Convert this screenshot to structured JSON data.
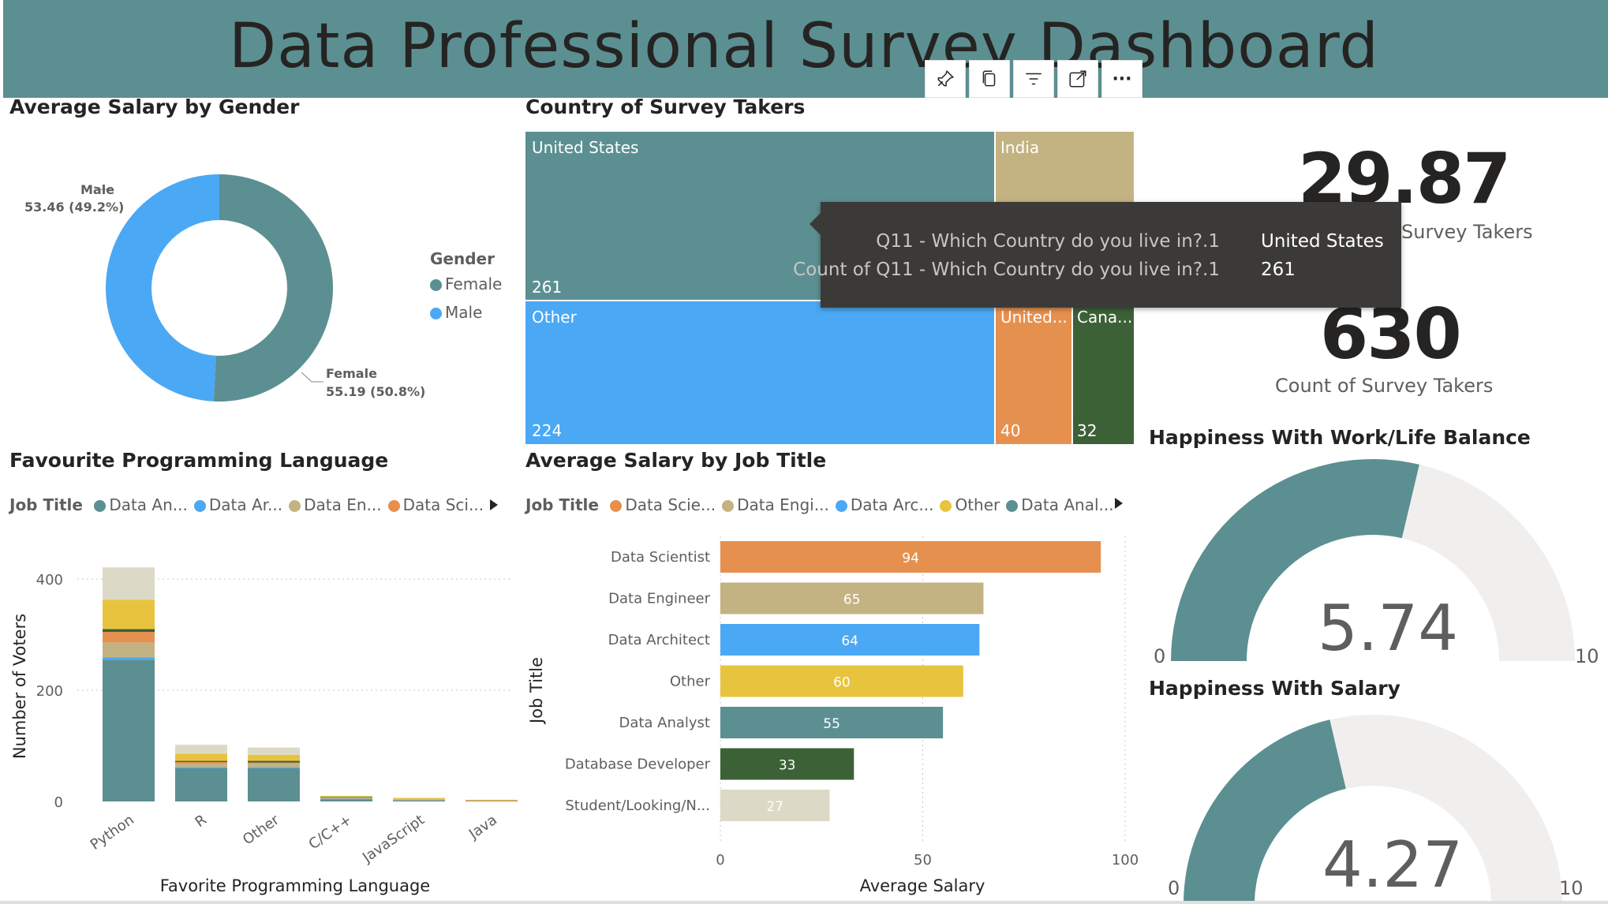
{
  "page": {
    "title": "Data Professional Survey Dashboard"
  },
  "toolbar": {
    "icons": [
      "pin-icon",
      "copy-icon",
      "filter-icon",
      "focus-mode-icon",
      "more-options-icon"
    ],
    "more_label": "···"
  },
  "gender_chart": {
    "title": "Average Salary by Gender",
    "legend_title": "Gender",
    "legend": [
      "Female",
      "Male"
    ],
    "male_label": "Male",
    "male_value": "53.46 (49.2%)",
    "female_label": "Female",
    "female_value": "55.19 (50.8%)",
    "colors": {
      "Female": "#5c8f91",
      "Male": "#4ba8f4"
    }
  },
  "country_chart": {
    "title": "Country of Survey Takers",
    "tiles": [
      {
        "name": "United States",
        "value": "261",
        "color": "#5c8f91"
      },
      {
        "name": "India",
        "value": "",
        "color": "#c4b382"
      },
      {
        "name": "Other",
        "value": "224",
        "color": "#4ba8f4"
      },
      {
        "name": "United...",
        "value": "40",
        "color": "#e6904f"
      },
      {
        "name": "Cana...",
        "value": "32",
        "color": "#3d6137"
      }
    ]
  },
  "tooltip": {
    "row1_key": "Q11 - Which Country do you live in?.1",
    "row1_value": "United States",
    "row2_key": "Count of Q11 - Which Country do you live in?.1",
    "row2_value": "261"
  },
  "cards": {
    "age_value": "29.87",
    "age_label": "Average Age of Survey Takers",
    "count_value": "630",
    "count_label": "Count of Survey Takers"
  },
  "lang_chart": {
    "title": "Favourite Programming Language",
    "legend_title": "Job Title",
    "legend": [
      {
        "label": "Data An...",
        "color": "#5c8f91"
      },
      {
        "label": "Data Ar...",
        "color": "#4ba8f4"
      },
      {
        "label": "Data En...",
        "color": "#c4b382"
      },
      {
        "label": "Data Sci...",
        "color": "#e6904f"
      }
    ],
    "xlabel": "Favorite Programming Language",
    "ylabel": "Number of Voters"
  },
  "job_chart": {
    "title": "Average Salary by Job Title",
    "legend_title": "Job Title",
    "legend": [
      {
        "label": "Data Scie...",
        "color": "#e6904f"
      },
      {
        "label": "Data Engi...",
        "color": "#c4b382"
      },
      {
        "label": "Data Arc...",
        "color": "#4ba8f4"
      },
      {
        "label": "Other",
        "color": "#e8c43e"
      },
      {
        "label": "Data Anal...",
        "color": "#5c8f91"
      }
    ],
    "xlabel": "Average Salary",
    "ylabel": "Job Title"
  },
  "gauges": {
    "worklife_title": "Happiness With Work/Life Balance",
    "worklife_value": "5.74",
    "salary_title": "Happiness With Salary",
    "salary_value": "4.27",
    "min_label": "0",
    "max_label": "10",
    "colors": {
      "fill": "#5c8f91",
      "track": "#f0efee"
    }
  },
  "chart_data": [
    {
      "type": "pie",
      "categories": [
        "Female",
        "Male"
      ],
      "values": [
        55.19,
        53.46
      ],
      "percent": [
        50.8,
        49.2
      ],
      "title": "Average Salary by Gender"
    },
    {
      "type": "heatmap",
      "categories": [
        "United States",
        "India",
        "Other",
        "United...",
        "Cana..."
      ],
      "values": [
        261,
        null,
        224,
        40,
        32
      ],
      "title": "Country of Survey Takers"
    },
    {
      "type": "bar",
      "title": "Favourite Programming Language",
      "categories": [
        "Python",
        "R",
        "Other",
        "C/C++",
        "JavaScript",
        "Java"
      ],
      "ylim": [
        0,
        420
      ],
      "yticks": [
        0,
        200,
        400
      ],
      "xlabel": "Favorite Programming Language",
      "ylabel": "Number of Voters",
      "series": [
        {
          "name": "Data An...",
          "color": "#5c8f91",
          "values": [
            255,
            60,
            60,
            4,
            2,
            1
          ]
        },
        {
          "name": "Data Ar...",
          "color": "#4ba8f4",
          "values": [
            4,
            2,
            2,
            1,
            0,
            0
          ]
        },
        {
          "name": "Data En...",
          "color": "#c4b382",
          "values": [
            27,
            6,
            6,
            1,
            1,
            0
          ]
        },
        {
          "name": "Data Sci...",
          "color": "#e6904f",
          "values": [
            19,
            3,
            2,
            1,
            1,
            1
          ]
        },
        {
          "name": "",
          "color": "#3d6137",
          "values": [
            5,
            2,
            3,
            1,
            0,
            0
          ]
        },
        {
          "name": "",
          "color": "#e8c43e",
          "values": [
            53,
            13,
            11,
            2,
            2,
            1
          ]
        },
        {
          "name": "",
          "color": "#dcd9c6",
          "values": [
            58,
            16,
            13,
            0,
            1,
            0
          ]
        }
      ]
    },
    {
      "type": "bar",
      "title": "Average Salary by Job Title",
      "categories": [
        "Data Scientist",
        "Data Engineer",
        "Data Architect",
        "Other",
        "Data Analyst",
        "Database Developer",
        "Student/Looking/N..."
      ],
      "values": [
        94,
        65,
        64,
        60,
        55,
        33,
        27
      ],
      "colors": [
        "#e6904f",
        "#c4b382",
        "#4ba8f4",
        "#e8c43e",
        "#5c8f91",
        "#3d6137",
        "#dcd9c6"
      ],
      "xlim": [
        0,
        100
      ],
      "xticks": [
        0,
        50,
        100
      ],
      "xlabel": "Average Salary",
      "ylabel": "Job Title"
    }
  ]
}
